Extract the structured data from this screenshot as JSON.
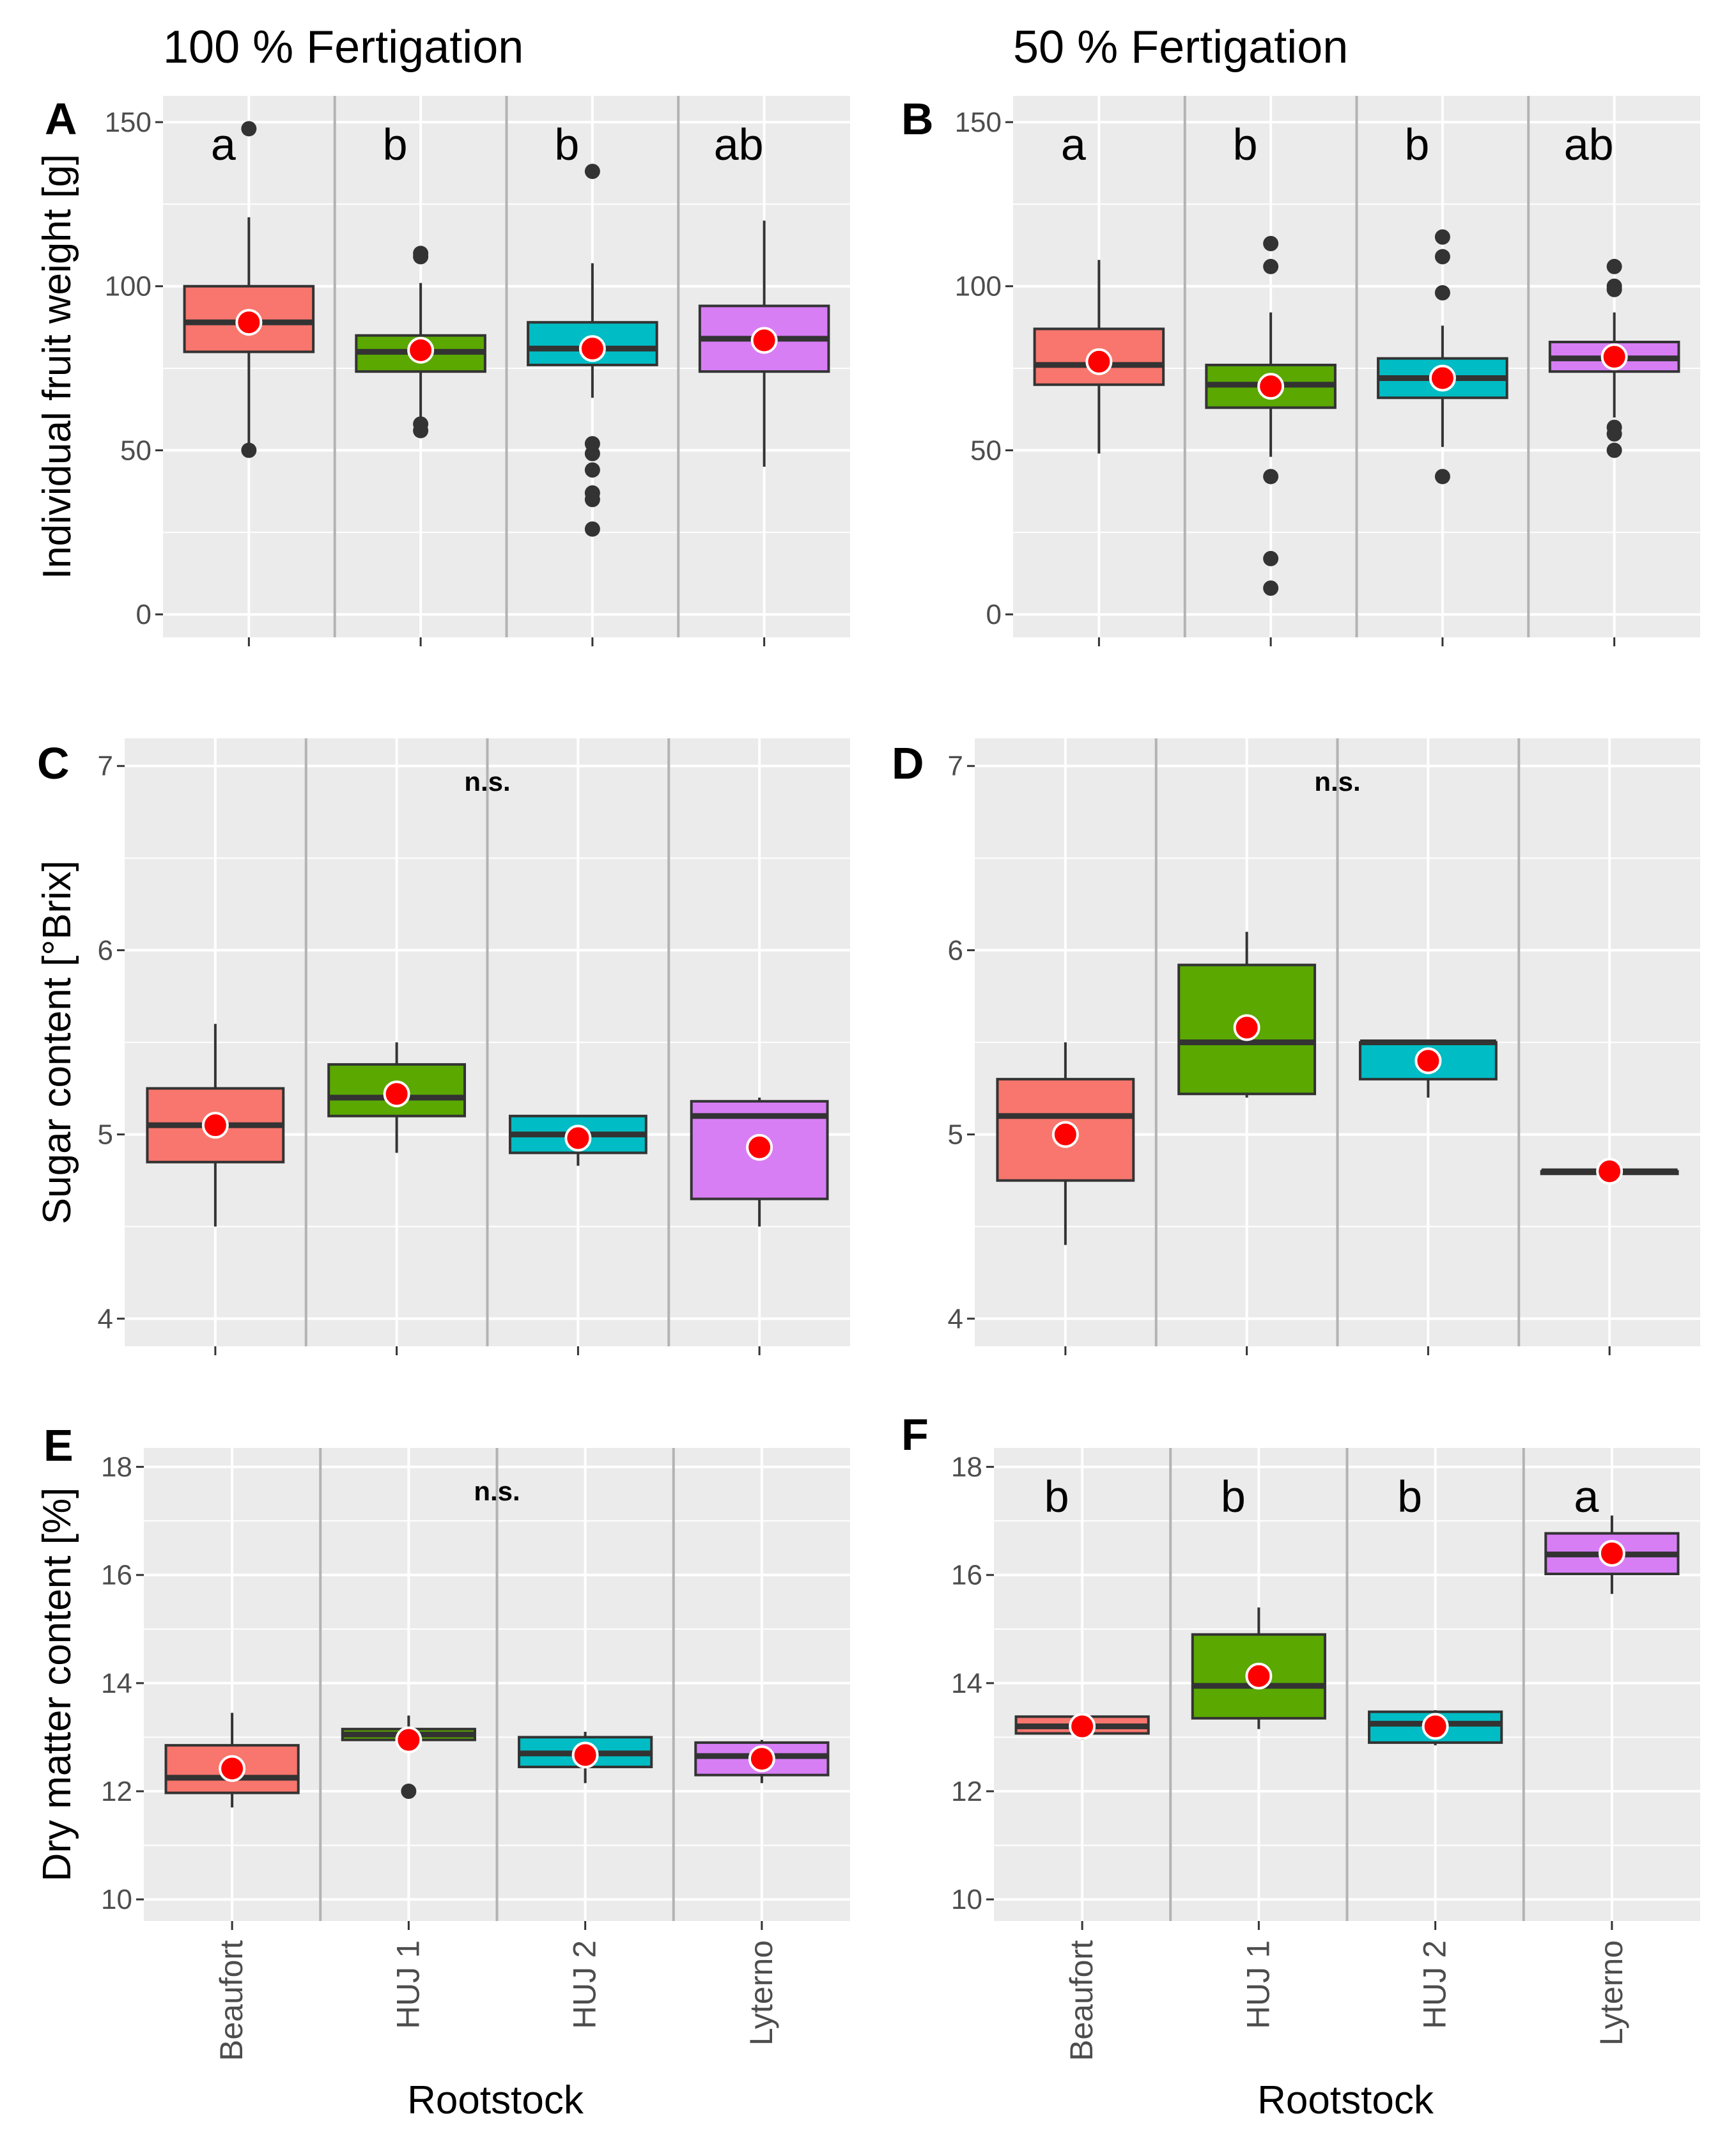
{
  "figure": {
    "column_titles": [
      "100 % Fertigation",
      "50 % Fertigation"
    ],
    "x_title": "Rootstock",
    "categories": [
      "Beaufort",
      "HUJ 1",
      "HUJ 2",
      "Lyterno"
    ],
    "colors": {
      "Beaufort": "#f8766d",
      "HUJ 1": "#5aa800",
      "HUJ 2": "#00bcc4",
      "Lyterno": "#d77ef5",
      "mean": "#ff0000",
      "panel_bg": "#ebebeb",
      "grid": "#ffffff",
      "whisker": "#333333",
      "separator": "#b3b3b3"
    }
  },
  "chart_data": [
    {
      "type": "box",
      "panel": "A",
      "column": "100 % Fertigation",
      "ylabel": "Individual fruit weight [g]",
      "ylim": [
        -7,
        158
      ],
      "yticks": [
        0,
        50,
        100,
        150
      ],
      "annotation": [
        "a",
        "b",
        "b",
        "ab"
      ],
      "categories": [
        "Beaufort",
        "HUJ 1",
        "HUJ 2",
        "Lyterno"
      ],
      "boxes": [
        {
          "low": 50,
          "q1": 80,
          "median": 89,
          "q3": 100,
          "high": 121,
          "mean": 89,
          "outliers": [
            148,
            50
          ]
        },
        {
          "low": 58,
          "q1": 74,
          "median": 80,
          "q3": 85,
          "high": 101,
          "mean": 80.5,
          "outliers": [
            110,
            109,
            58,
            56
          ]
        },
        {
          "low": 66,
          "q1": 76,
          "median": 81,
          "q3": 89,
          "high": 107,
          "mean": 81,
          "outliers": [
            135,
            52,
            49,
            44,
            37,
            35,
            26
          ]
        },
        {
          "low": 45,
          "q1": 74,
          "median": 84,
          "q3": 94,
          "high": 120,
          "mean": 83.5,
          "outliers": []
        }
      ]
    },
    {
      "type": "box",
      "panel": "B",
      "column": "50 % Fertigation",
      "ylabel": "",
      "ylim": [
        -7,
        158
      ],
      "yticks": [
        0,
        50,
        100,
        150
      ],
      "annotation": [
        "a",
        "b",
        "b",
        "ab"
      ],
      "categories": [
        "Beaufort",
        "HUJ 1",
        "HUJ 2",
        "Lyterno"
      ],
      "boxes": [
        {
          "low": 49,
          "q1": 70,
          "median": 76,
          "q3": 87,
          "high": 108,
          "mean": 77,
          "outliers": []
        },
        {
          "low": 48,
          "q1": 63,
          "median": 70,
          "q3": 76,
          "high": 92,
          "mean": 69.5,
          "outliers": [
            113,
            106,
            42,
            17,
            8
          ]
        },
        {
          "low": 51,
          "q1": 66,
          "median": 72,
          "q3": 78,
          "high": 88,
          "mean": 72,
          "outliers": [
            115,
            109,
            98,
            42
          ]
        },
        {
          "low": 60,
          "q1": 74,
          "median": 78,
          "q3": 83,
          "high": 92,
          "mean": 78.5,
          "outliers": [
            106,
            100,
            99,
            57,
            55,
            50
          ]
        }
      ]
    },
    {
      "type": "box",
      "panel": "C",
      "column": "100 % Fertigation",
      "ylabel": "Sugar content [°Brix]",
      "ylim": [
        3.85,
        7.15
      ],
      "yticks": [
        4,
        5,
        6,
        7
      ],
      "annotation": [
        "n.s."
      ],
      "categories": [
        "Beaufort",
        "HUJ 1",
        "HUJ 2",
        "Lyterno"
      ],
      "boxes": [
        {
          "low": 4.5,
          "q1": 4.85,
          "median": 5.05,
          "q3": 5.25,
          "high": 5.6,
          "mean": 5.05,
          "outliers": []
        },
        {
          "low": 4.9,
          "q1": 5.1,
          "median": 5.2,
          "q3": 5.38,
          "high": 5.5,
          "mean": 5.22,
          "outliers": []
        },
        {
          "low": 4.83,
          "q1": 4.9,
          "median": 5.0,
          "q3": 5.1,
          "high": 5.1,
          "mean": 4.98,
          "outliers": []
        },
        {
          "low": 4.5,
          "q1": 4.65,
          "median": 5.1,
          "q3": 5.18,
          "high": 5.2,
          "mean": 4.93,
          "outliers": []
        }
      ]
    },
    {
      "type": "box",
      "panel": "D",
      "column": "50 % Fertigation",
      "ylabel": "",
      "ylim": [
        3.85,
        7.15
      ],
      "yticks": [
        4,
        5,
        6,
        7
      ],
      "annotation": [
        "n.s."
      ],
      "categories": [
        "Beaufort",
        "HUJ 1",
        "HUJ 2",
        "Lyterno"
      ],
      "boxes": [
        {
          "low": 4.4,
          "q1": 4.75,
          "median": 5.1,
          "q3": 5.3,
          "high": 5.5,
          "mean": 5.0,
          "outliers": []
        },
        {
          "low": 5.2,
          "q1": 5.22,
          "median": 5.5,
          "q3": 5.92,
          "high": 6.1,
          "mean": 5.58,
          "outliers": []
        },
        {
          "low": 5.2,
          "q1": 5.3,
          "median": 5.5,
          "q3": 5.5,
          "high": 5.5,
          "mean": 5.4,
          "outliers": []
        },
        {
          "low": 4.8,
          "q1": 4.8,
          "median": 4.8,
          "q3": 4.8,
          "high": 4.8,
          "mean": 4.8,
          "outliers": []
        }
      ]
    },
    {
      "type": "box",
      "panel": "E",
      "column": "100 % Fertigation",
      "ylabel": "Dry matter content [%]",
      "ylim": [
        9.6,
        18.35
      ],
      "yticks": [
        10,
        12,
        14,
        16,
        18
      ],
      "annotation": [
        "n.s."
      ],
      "categories": [
        "Beaufort",
        "HUJ 1",
        "HUJ 2",
        "Lyterno"
      ],
      "boxes": [
        {
          "low": 11.7,
          "q1": 11.97,
          "median": 12.25,
          "q3": 12.85,
          "high": 13.45,
          "mean": 12.42,
          "outliers": []
        },
        {
          "low": 12.95,
          "q1": 12.95,
          "median": 13.05,
          "q3": 13.15,
          "high": 13.4,
          "mean": 12.95,
          "outliers": [
            12.0
          ]
        },
        {
          "low": 12.15,
          "q1": 12.45,
          "median": 12.7,
          "q3": 13.0,
          "high": 13.1,
          "mean": 12.67,
          "outliers": []
        },
        {
          "low": 12.15,
          "q1": 12.3,
          "median": 12.65,
          "q3": 12.9,
          "high": 12.95,
          "mean": 12.6,
          "outliers": []
        }
      ]
    },
    {
      "type": "box",
      "panel": "F",
      "column": "50 % Fertigation",
      "ylabel": "",
      "ylim": [
        9.6,
        18.35
      ],
      "yticks": [
        10,
        12,
        14,
        16,
        18
      ],
      "annotation": [
        "b",
        "b",
        "b",
        "a"
      ],
      "categories": [
        "Beaufort",
        "HUJ 1",
        "HUJ 2",
        "Lyterno"
      ],
      "boxes": [
        {
          "low": 12.95,
          "q1": 13.07,
          "median": 13.2,
          "q3": 13.38,
          "high": 13.45,
          "mean": 13.2,
          "outliers": []
        },
        {
          "low": 13.15,
          "q1": 13.35,
          "median": 13.95,
          "q3": 14.9,
          "high": 15.4,
          "mean": 14.13,
          "outliers": []
        },
        {
          "low": 12.85,
          "q1": 12.9,
          "median": 13.25,
          "q3": 13.47,
          "high": 13.5,
          "mean": 13.2,
          "outliers": []
        },
        {
          "low": 15.65,
          "q1": 16.02,
          "median": 16.38,
          "q3": 16.77,
          "high": 17.1,
          "mean": 16.4,
          "outliers": []
        }
      ]
    }
  ]
}
